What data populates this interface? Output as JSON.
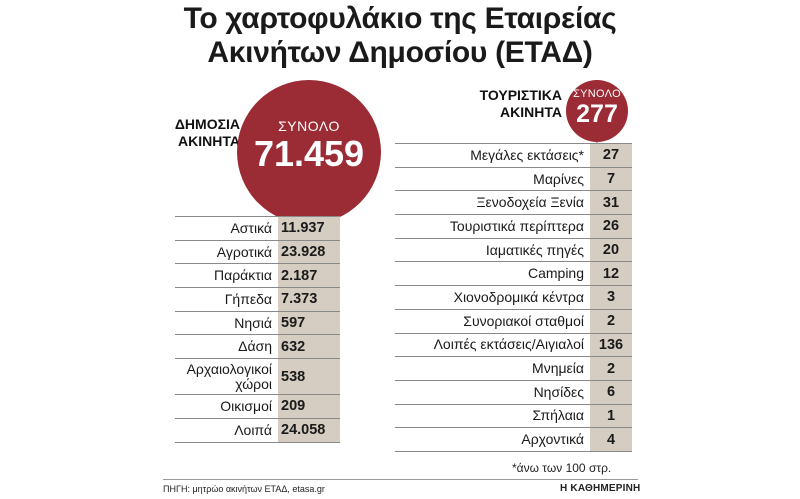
{
  "title_line1": "Το χαρτοφυλάκιο της Εταιρείας",
  "title_line2": "Ακινήτων Δημοσίου (ΕΤΑΔ)",
  "chart_data": [
    {
      "type": "table",
      "group_label": "ΔΗΜΟΣΙΑ ΑΚΙΝΗΤΑ",
      "total_label": "ΣΥΝΟΛΟ",
      "total": "71.459",
      "categories": [
        "Αστικά",
        "Αγροτικά",
        "Παράκτια",
        "Γήπεδα",
        "Νησιά",
        "Δάση",
        "Αρχαιολογικοί χώροι",
        "Οικισμοί",
        "Λοιπά"
      ],
      "display_values": [
        "11.937",
        "23.928",
        "2.187",
        "7.373",
        "597",
        "632",
        "538",
        "209",
        "24.058"
      ],
      "values": [
        11937,
        23928,
        2187,
        7373,
        597,
        632,
        538,
        209,
        24058
      ]
    },
    {
      "type": "table",
      "group_label": "ΤΟΥΡΙΣΤΙΚΑ ΑΚΙΝΗΤΑ",
      "total_label": "ΣΥΝΟΛΟ",
      "total": "277",
      "categories": [
        "Μεγάλες εκτάσεις*",
        "Μαρίνες",
        "Ξενοδοχεία Ξενία",
        "Τουριστικά περίπτερα",
        "Ιαματικές πηγές",
        "Camping",
        "Χιονοδρομικά κέντρα",
        "Συνοριακοί σταθμοί",
        "Λοιπές εκτάσεις/Αιγιαλοί",
        "Μνημεία",
        "Νησίδες",
        "Σπήλαια",
        "Αρχοντικά"
      ],
      "display_values": [
        "27",
        "7",
        "31",
        "26",
        "20",
        "12",
        "3",
        "2",
        "136",
        "2",
        "6",
        "1",
        "4"
      ],
      "values": [
        27,
        7,
        31,
        26,
        20,
        12,
        3,
        2,
        136,
        2,
        6,
        1,
        4
      ]
    }
  ],
  "footnote": "*άνω των 100 στρ.",
  "source": "ΠΗΓΗ: μητρώο ακινήτων ΕΤΑΔ, etasa.gr",
  "brand": "Η ΚΑΘΗΜΕΡΙΝΗ",
  "colors": {
    "accent": "#9b2b35",
    "cell": "#d6cdc2"
  }
}
